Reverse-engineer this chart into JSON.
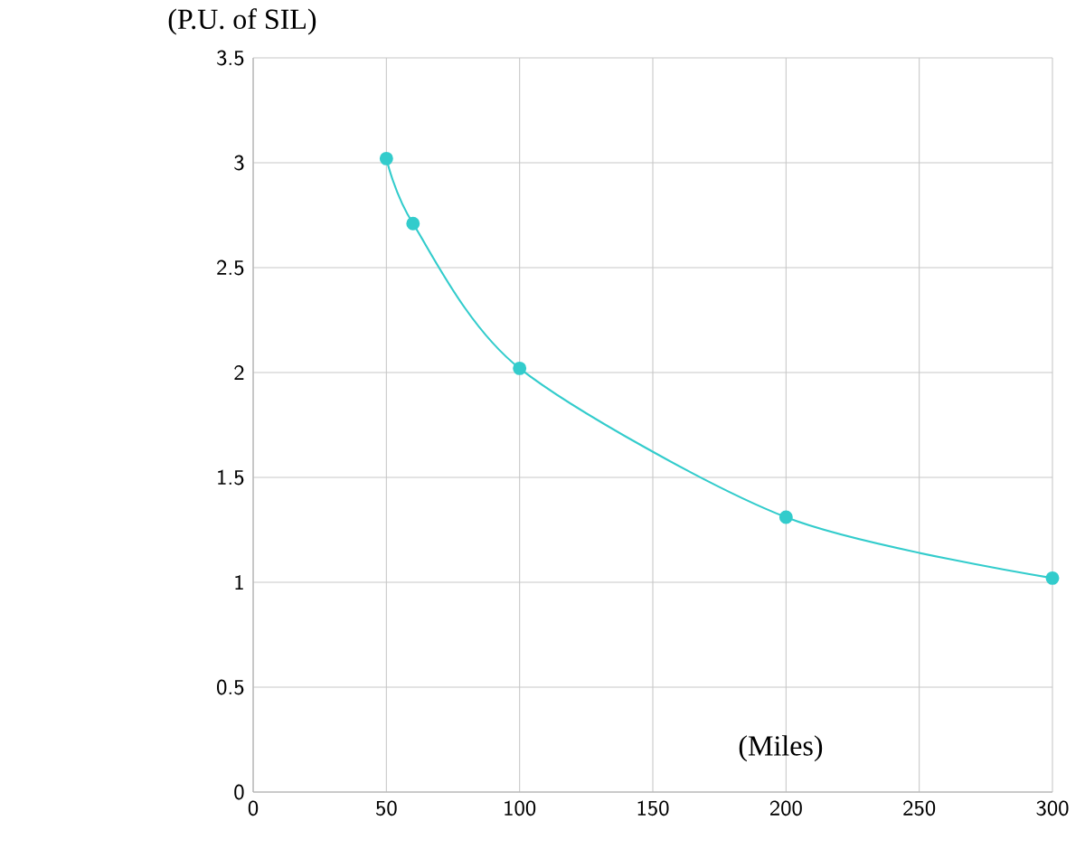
{
  "chart_data": {
    "type": "line",
    "xlabel": "(Miles)",
    "ylabel": "(P.U. of SIL)",
    "x": [
      50,
      60,
      100,
      200,
      300
    ],
    "series": [
      {
        "color": "#33cccc",
        "values": [
          3.02,
          2.71,
          2.02,
          1.31,
          1.02
        ]
      }
    ],
    "xlim": [
      0,
      300
    ],
    "ylim": [
      0,
      3.5
    ],
    "xticks": [
      0,
      50,
      100,
      150,
      200,
      250,
      300
    ],
    "yticks": [
      0,
      0.5,
      1,
      1.5,
      2,
      2.5,
      3,
      3.5
    ],
    "grid": true,
    "marker": "circle"
  }
}
